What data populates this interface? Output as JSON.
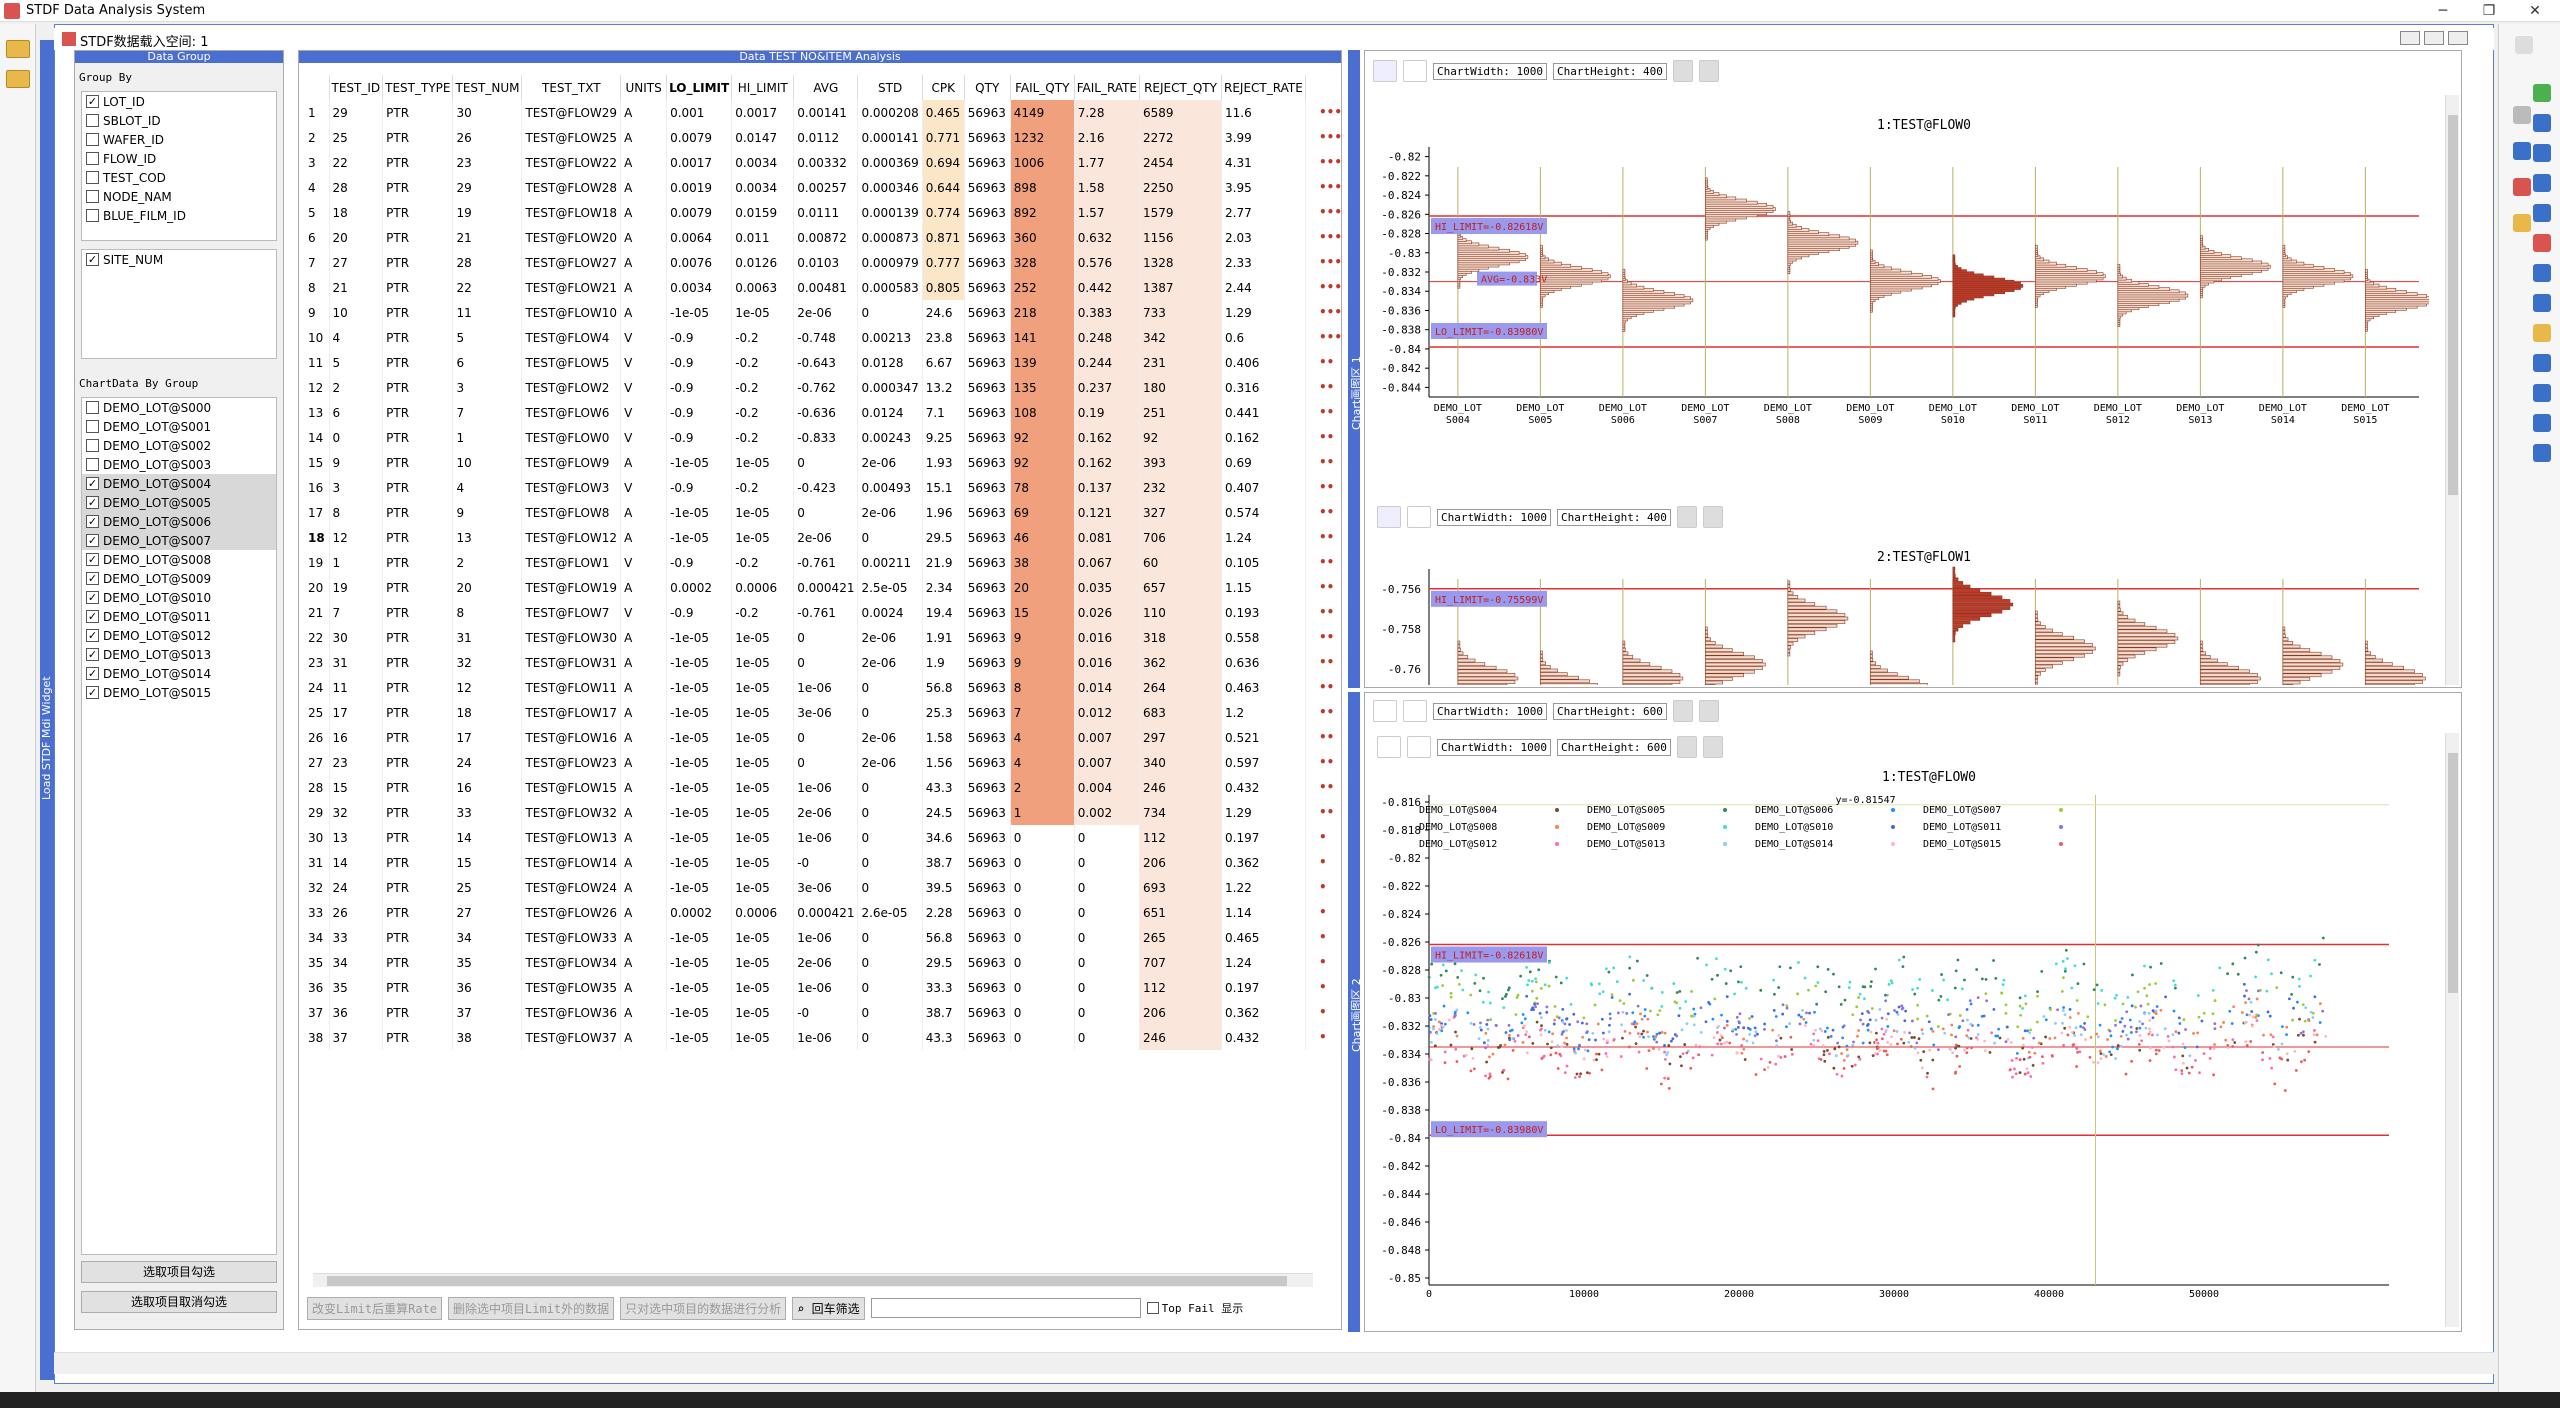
{
  "app": {
    "title": "STDF Data Analysis System",
    "sub_title": "STDF数据载入空间: 1"
  },
  "left_dock": {
    "label": "Load STDF Mdi Widget"
  },
  "group_panel": {
    "header": "Data Group",
    "group_by_label": "Group By",
    "group_items": [
      {
        "label": "LOT_ID",
        "checked": true
      },
      {
        "label": "SBLOT_ID",
        "checked": false
      },
      {
        "label": "WAFER_ID",
        "checked": false
      },
      {
        "label": "FLOW_ID",
        "checked": false
      },
      {
        "label": "TEST_COD",
        "checked": false
      },
      {
        "label": "NODE_NAM",
        "checked": false
      },
      {
        "label": "BLUE_FILM_ID",
        "checked": false
      }
    ],
    "site_items": [
      {
        "label": "SITE_NUM",
        "checked": true
      }
    ],
    "chart_group_label": "ChartData By Group",
    "chart_items": [
      {
        "label": "DEMO_LOT@S000",
        "checked": false,
        "sel": false
      },
      {
        "label": "DEMO_LOT@S001",
        "checked": false,
        "sel": false
      },
      {
        "label": "DEMO_LOT@S002",
        "checked": false,
        "sel": false
      },
      {
        "label": "DEMO_LOT@S003",
        "checked": false,
        "sel": false
      },
      {
        "label": "DEMO_LOT@S004",
        "checked": true,
        "sel": true
      },
      {
        "label": "DEMO_LOT@S005",
        "checked": true,
        "sel": true
      },
      {
        "label": "DEMO_LOT@S006",
        "checked": true,
        "sel": true
      },
      {
        "label": "DEMO_LOT@S007",
        "checked": true,
        "sel": true
      },
      {
        "label": "DEMO_LOT@S008",
        "checked": true,
        "sel": false
      },
      {
        "label": "DEMO_LOT@S009",
        "checked": true,
        "sel": false
      },
      {
        "label": "DEMO_LOT@S010",
        "checked": true,
        "sel": false
      },
      {
        "label": "DEMO_LOT@S011",
        "checked": true,
        "sel": false
      },
      {
        "label": "DEMO_LOT@S012",
        "checked": true,
        "sel": false
      },
      {
        "label": "DEMO_LOT@S013",
        "checked": true,
        "sel": false
      },
      {
        "label": "DEMO_LOT@S014",
        "checked": true,
        "sel": false
      },
      {
        "label": "DEMO_LOT@S015",
        "checked": true,
        "sel": false
      }
    ],
    "btn_check": "选取项目勾选",
    "btn_uncheck": "选取项目取消勾选"
  },
  "table_panel": {
    "header": "Data TEST NO&ITEM Analysis",
    "columns": [
      "TEST_ID",
      "TEST_TYPE",
      "TEST_NUM",
      "TEST_TXT",
      "UNITS",
      "LO_LIMIT",
      "HI_LIMIT",
      "AVG",
      "STD",
      "CPK",
      "QTY",
      "FAIL_QTY",
      "FAIL_RATE",
      "REJECT_QTY",
      "REJECT_RATE"
    ],
    "rows": [
      [
        "1",
        "29",
        "PTR",
        "30",
        "TEST@FLOW29",
        "A",
        "0.001",
        "0.0017",
        "0.00141",
        "0.000208",
        "0.465",
        "56963",
        "4149",
        "7.28",
        "6589",
        "11.6"
      ],
      [
        "2",
        "25",
        "PTR",
        "26",
        "TEST@FLOW25",
        "A",
        "0.0079",
        "0.0147",
        "0.0112",
        "0.000141",
        "0.771",
        "56963",
        "1232",
        "2.16",
        "2272",
        "3.99"
      ],
      [
        "3",
        "22",
        "PTR",
        "23",
        "TEST@FLOW22",
        "A",
        "0.0017",
        "0.0034",
        "0.00332",
        "0.000369",
        "0.694",
        "56963",
        "1006",
        "1.77",
        "2454",
        "4.31"
      ],
      [
        "4",
        "28",
        "PTR",
        "29",
        "TEST@FLOW28",
        "A",
        "0.0019",
        "0.0034",
        "0.00257",
        "0.000346",
        "0.644",
        "56963",
        "898",
        "1.58",
        "2250",
        "3.95"
      ],
      [
        "5",
        "18",
        "PTR",
        "19",
        "TEST@FLOW18",
        "A",
        "0.0079",
        "0.0159",
        "0.0111",
        "0.000139",
        "0.774",
        "56963",
        "892",
        "1.57",
        "1579",
        "2.77"
      ],
      [
        "6",
        "20",
        "PTR",
        "21",
        "TEST@FLOW20",
        "A",
        "0.0064",
        "0.011",
        "0.00872",
        "0.000873",
        "0.871",
        "56963",
        "360",
        "0.632",
        "1156",
        "2.03"
      ],
      [
        "7",
        "27",
        "PTR",
        "28",
        "TEST@FLOW27",
        "A",
        "0.0076",
        "0.0126",
        "0.0103",
        "0.000979",
        "0.777",
        "56963",
        "328",
        "0.576",
        "1328",
        "2.33"
      ],
      [
        "8",
        "21",
        "PTR",
        "22",
        "TEST@FLOW21",
        "A",
        "0.0034",
        "0.0063",
        "0.00481",
        "0.000583",
        "0.805",
        "56963",
        "252",
        "0.442",
        "1387",
        "2.44"
      ],
      [
        "9",
        "10",
        "PTR",
        "11",
        "TEST@FLOW10",
        "A",
        "-1e-05",
        "1e-05",
        "2e-06",
        "0",
        "24.6",
        "56963",
        "218",
        "0.383",
        "733",
        "1.29"
      ],
      [
        "10",
        "4",
        "PTR",
        "5",
        "TEST@FLOW4",
        "V",
        "-0.9",
        "-0.2",
        "-0.748",
        "0.00213",
        "23.8",
        "56963",
        "141",
        "0.248",
        "342",
        "0.6"
      ],
      [
        "11",
        "5",
        "PTR",
        "6",
        "TEST@FLOW5",
        "V",
        "-0.9",
        "-0.2",
        "-0.643",
        "0.0128",
        "6.67",
        "56963",
        "139",
        "0.244",
        "231",
        "0.406"
      ],
      [
        "12",
        "2",
        "PTR",
        "3",
        "TEST@FLOW2",
        "V",
        "-0.9",
        "-0.2",
        "-0.762",
        "0.000347",
        "13.2",
        "56963",
        "135",
        "0.237",
        "180",
        "0.316"
      ],
      [
        "13",
        "6",
        "PTR",
        "7",
        "TEST@FLOW6",
        "V",
        "-0.9",
        "-0.2",
        "-0.636",
        "0.0124",
        "7.1",
        "56963",
        "108",
        "0.19",
        "251",
        "0.441"
      ],
      [
        "14",
        "0",
        "PTR",
        "1",
        "TEST@FLOW0",
        "V",
        "-0.9",
        "-0.2",
        "-0.833",
        "0.00243",
        "9.25",
        "56963",
        "92",
        "0.162",
        "92",
        "0.162"
      ],
      [
        "15",
        "9",
        "PTR",
        "10",
        "TEST@FLOW9",
        "A",
        "-1e-05",
        "1e-05",
        "0",
        "2e-06",
        "1.93",
        "56963",
        "92",
        "0.162",
        "393",
        "0.69"
      ],
      [
        "16",
        "3",
        "PTR",
        "4",
        "TEST@FLOW3",
        "V",
        "-0.9",
        "-0.2",
        "-0.423",
        "0.00493",
        "15.1",
        "56963",
        "78",
        "0.137",
        "232",
        "0.407"
      ],
      [
        "17",
        "8",
        "PTR",
        "9",
        "TEST@FLOW8",
        "A",
        "-1e-05",
        "1e-05",
        "0",
        "2e-06",
        "1.96",
        "56963",
        "69",
        "0.121",
        "327",
        "0.574"
      ],
      [
        "18",
        "12",
        "PTR",
        "13",
        "TEST@FLOW12",
        "A",
        "-1e-05",
        "1e-05",
        "2e-06",
        "0",
        "29.5",
        "56963",
        "46",
        "0.081",
        "706",
        "1.24"
      ],
      [
        "19",
        "1",
        "PTR",
        "2",
        "TEST@FLOW1",
        "V",
        "-0.9",
        "-0.2",
        "-0.761",
        "0.00211",
        "21.9",
        "56963",
        "38",
        "0.067",
        "60",
        "0.105"
      ],
      [
        "20",
        "19",
        "PTR",
        "20",
        "TEST@FLOW19",
        "A",
        "0.0002",
        "0.0006",
        "0.000421",
        "2.5e-05",
        "2.34",
        "56963",
        "20",
        "0.035",
        "657",
        "1.15"
      ],
      [
        "21",
        "7",
        "PTR",
        "8",
        "TEST@FLOW7",
        "V",
        "-0.9",
        "-0.2",
        "-0.761",
        "0.0024",
        "19.4",
        "56963",
        "15",
        "0.026",
        "110",
        "0.193"
      ],
      [
        "22",
        "30",
        "PTR",
        "31",
        "TEST@FLOW30",
        "A",
        "-1e-05",
        "1e-05",
        "0",
        "2e-06",
        "1.91",
        "56963",
        "9",
        "0.016",
        "318",
        "0.558"
      ],
      [
        "23",
        "31",
        "PTR",
        "32",
        "TEST@FLOW31",
        "A",
        "-1e-05",
        "1e-05",
        "0",
        "2e-06",
        "1.9",
        "56963",
        "9",
        "0.016",
        "362",
        "0.636"
      ],
      [
        "24",
        "11",
        "PTR",
        "12",
        "TEST@FLOW11",
        "A",
        "-1e-05",
        "1e-05",
        "1e-06",
        "0",
        "56.8",
        "56963",
        "8",
        "0.014",
        "264",
        "0.463"
      ],
      [
        "25",
        "17",
        "PTR",
        "18",
        "TEST@FLOW17",
        "A",
        "-1e-05",
        "1e-05",
        "3e-06",
        "0",
        "25.3",
        "56963",
        "7",
        "0.012",
        "683",
        "1.2"
      ],
      [
        "26",
        "16",
        "PTR",
        "17",
        "TEST@FLOW16",
        "A",
        "-1e-05",
        "1e-05",
        "0",
        "2e-06",
        "1.58",
        "56963",
        "4",
        "0.007",
        "297",
        "0.521"
      ],
      [
        "27",
        "23",
        "PTR",
        "24",
        "TEST@FLOW23",
        "A",
        "-1e-05",
        "1e-05",
        "0",
        "2e-06",
        "1.56",
        "56963",
        "4",
        "0.007",
        "340",
        "0.597"
      ],
      [
        "28",
        "15",
        "PTR",
        "16",
        "TEST@FLOW15",
        "A",
        "-1e-05",
        "1e-05",
        "1e-06",
        "0",
        "43.3",
        "56963",
        "2",
        "0.004",
        "246",
        "0.432"
      ],
      [
        "29",
        "32",
        "PTR",
        "33",
        "TEST@FLOW32",
        "A",
        "-1e-05",
        "1e-05",
        "2e-06",
        "0",
        "24.5",
        "56963",
        "1",
        "0.002",
        "734",
        "1.29"
      ],
      [
        "30",
        "13",
        "PTR",
        "14",
        "TEST@FLOW13",
        "A",
        "-1e-05",
        "1e-05",
        "1e-06",
        "0",
        "34.6",
        "56963",
        "0",
        "0",
        "112",
        "0.197"
      ],
      [
        "31",
        "14",
        "PTR",
        "15",
        "TEST@FLOW14",
        "A",
        "-1e-05",
        "1e-05",
        "-0",
        "0",
        "38.7",
        "56963",
        "0",
        "0",
        "206",
        "0.362"
      ],
      [
        "32",
        "24",
        "PTR",
        "25",
        "TEST@FLOW24",
        "A",
        "-1e-05",
        "1e-05",
        "3e-06",
        "0",
        "39.5",
        "56963",
        "0",
        "0",
        "693",
        "1.22"
      ],
      [
        "33",
        "26",
        "PTR",
        "27",
        "TEST@FLOW26",
        "A",
        "0.0002",
        "0.0006",
        "0.000421",
        "2.6e-05",
        "2.28",
        "56963",
        "0",
        "0",
        "651",
        "1.14"
      ],
      [
        "34",
        "33",
        "PTR",
        "34",
        "TEST@FLOW33",
        "A",
        "-1e-05",
        "1e-05",
        "1e-06",
        "0",
        "56.8",
        "56963",
        "0",
        "0",
        "265",
        "0.465"
      ],
      [
        "35",
        "34",
        "PTR",
        "35",
        "TEST@FLOW34",
        "A",
        "-1e-05",
        "1e-05",
        "2e-06",
        "0",
        "29.5",
        "56963",
        "0",
        "0",
        "707",
        "1.24"
      ],
      [
        "36",
        "35",
        "PTR",
        "36",
        "TEST@FLOW35",
        "A",
        "-1e-05",
        "1e-05",
        "1e-06",
        "0",
        "33.3",
        "56963",
        "0",
        "0",
        "112",
        "0.197"
      ],
      [
        "37",
        "36",
        "PTR",
        "37",
        "TEST@FLOW36",
        "A",
        "-1e-05",
        "1e-05",
        "-0",
        "0",
        "38.7",
        "56963",
        "0",
        "0",
        "206",
        "0.362"
      ],
      [
        "38",
        "37",
        "PTR",
        "38",
        "TEST@FLOW37",
        "A",
        "-1e-05",
        "1e-05",
        "1e-06",
        "0",
        "43.3",
        "56963",
        "0",
        "0",
        "246",
        "0.432"
      ]
    ],
    "bottom_buttons": [
      "改变Limit后重算Rate",
      "删除选中项目Limit外的数据",
      "只对选中项目的数据进行分析"
    ],
    "filter_btn": "回车筛选",
    "top_fail_label": "Top Fail 显示"
  },
  "charts": {
    "toolbar": {
      "width_label": "ChartWidth: 1000",
      "height_label_400": "ChartHeight: 400",
      "height_label_600": "ChartHeight: 600"
    },
    "dock1_label": "Chart画图区 1",
    "dock2_label": "Chart画图区 2",
    "hist1": {
      "title": "1:TEST@FLOW0",
      "hi_label": "HI_LIMIT=-0.82618V",
      "lo_label": "LO_LIMIT=-0.83980V",
      "mid_label": "AVG=-0.833V",
      "yticks": [
        "-0.82",
        "-0.822",
        "-0.824",
        "-0.826",
        "-0.828",
        "-0.83",
        "-0.832",
        "-0.834",
        "-0.836",
        "-0.838",
        "-0.84",
        "-0.842",
        "-0.844"
      ],
      "groups": [
        [
          "DEMO_LOT",
          "S004"
        ],
        [
          "DEMO_LOT",
          "S005"
        ],
        [
          "DEMO_LOT",
          "S006"
        ],
        [
          "DEMO_LOT",
          "S007"
        ],
        [
          "DEMO_LOT",
          "S008"
        ],
        [
          "DEMO_LOT",
          "S009"
        ],
        [
          "DEMO_LOT",
          "S010"
        ],
        [
          "DEMO_LOT",
          "S011"
        ],
        [
          "DEMO_LOT",
          "S012"
        ],
        [
          "DEMO_LOT",
          "S013"
        ],
        [
          "DEMO_LOT",
          "S014"
        ],
        [
          "DEMO_LOT",
          "S015"
        ]
      ]
    },
    "hist2": {
      "title": "2:TEST@FLOW1",
      "hi_label": "HI_LIMIT=-0.75599V",
      "yticks": [
        "-0.756",
        "-0.758",
        "-0.76"
      ]
    },
    "scatter": {
      "title": "1:TEST@FLOW0",
      "hi_label": "HI_LIMIT=-0.82618V",
      "lo_label": "LO_LIMIT=-0.83980V",
      "cursor_label": "y=-0.81547",
      "yticks": [
        "-0.816",
        "-0.818",
        "-0.82",
        "-0.822",
        "-0.824",
        "-0.826",
        "-0.828",
        "-0.83",
        "-0.832",
        "-0.834",
        "-0.836",
        "-0.838",
        "-0.84",
        "-0.842",
        "-0.844",
        "-0.846",
        "-0.848",
        "-0.85"
      ],
      "xticks": [
        "0",
        "10000",
        "20000",
        "30000",
        "40000",
        "50000"
      ],
      "legend": [
        {
          "name": "DEMO_LOT@S004",
          "color": "#7a4b2a"
        },
        {
          "name": "DEMO_LOT@S005",
          "color": "#2e8b57"
        },
        {
          "name": "DEMO_LOT@S006",
          "color": "#1e90ff"
        },
        {
          "name": "DEMO_LOT@S007",
          "color": "#9acd32"
        },
        {
          "name": "DEMO_LOT@S008",
          "color": "#ff7f50"
        },
        {
          "name": "DEMO_LOT@S009",
          "color": "#40e0d0"
        },
        {
          "name": "DEMO_LOT@S010",
          "color": "#4169e1"
        },
        {
          "name": "DEMO_LOT@S011",
          "color": "#9370db"
        },
        {
          "name": "DEMO_LOT@S012",
          "color": "#ff69b4"
        },
        {
          "name": "DEMO_LOT@S013",
          "color": "#87cefa"
        },
        {
          "name": "DEMO_LOT@S014",
          "color": "#ffb6c1"
        },
        {
          "name": "DEMO_LOT@S015",
          "color": "#f05a5a"
        }
      ]
    }
  }
}
